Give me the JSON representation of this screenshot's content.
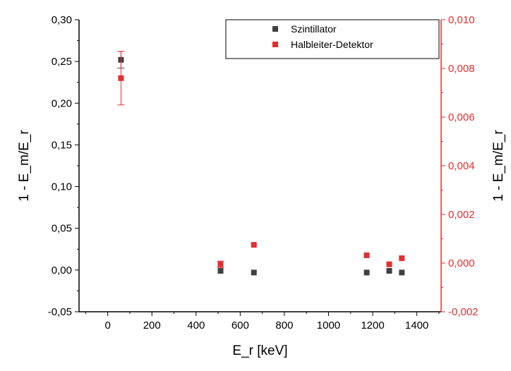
{
  "chart_data": {
    "type": "scatter",
    "xlabel": "E_r [keV]",
    "ylabel": "1 - E_m/E_r",
    "y2label": "1 - E_m/E_r",
    "xlim": [
      -130,
      1510
    ],
    "ylim": [
      -0.05,
      0.3
    ],
    "y2lim": [
      -0.002,
      0.01
    ],
    "x_ticks": [
      0,
      200,
      400,
      600,
      800,
      1000,
      1200,
      1400
    ],
    "x_tick_labels": [
      "0",
      "200",
      "400",
      "600",
      "800",
      "1000",
      "1200",
      "1400"
    ],
    "y_ticks": [
      -0.05,
      0.0,
      0.05,
      0.1,
      0.15,
      0.2,
      0.25,
      0.3
    ],
    "y_tick_labels": [
      "-0,05",
      "0,00",
      "0,05",
      "0,10",
      "0,15",
      "0,20",
      "0,25",
      "0,30"
    ],
    "y2_ticks": [
      -0.002,
      0.0,
      0.002,
      0.004,
      0.006,
      0.008,
      0.01
    ],
    "y2_tick_labels": [
      "-0,002",
      "0,000",
      "0,002",
      "0,004",
      "0,006",
      "0,008",
      "0,010"
    ],
    "legend_position": "top-right",
    "series": [
      {
        "name": "Szintillator",
        "axis": "left",
        "color": "#404040",
        "marker": "square",
        "x": [
          60,
          511,
          662,
          1173,
          1275,
          1332
        ],
        "y": [
          0.252,
          -0.001,
          -0.003,
          -0.003,
          -0.001,
          -0.003
        ],
        "err": [
          0.01,
          0.002,
          0.001,
          0.001,
          0.001,
          0.001
        ]
      },
      {
        "name": "Halbleiter-Detektor",
        "axis": "right",
        "color": "#e03030",
        "marker": "square",
        "x": [
          60,
          511,
          662,
          1173,
          1275,
          1332
        ],
        "y": [
          0.0076,
          -5e-05,
          0.00075,
          0.00032,
          -5e-05,
          0.0002
        ],
        "err": [
          0.0011,
          0.00013,
          5e-05,
          5e-05,
          5e-05,
          5e-05
        ]
      }
    ]
  }
}
